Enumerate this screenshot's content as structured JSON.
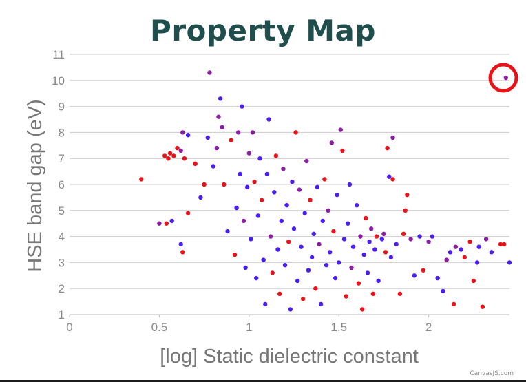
{
  "chart_data": {
    "type": "scatter",
    "title": "Property Map",
    "xlabel": "[log] Static dielectric constant",
    "ylabel": "HSE band gap (eV)",
    "xlim": [
      0,
      2.45
    ],
    "ylim": [
      1,
      11
    ],
    "x_ticks": [
      "0",
      "0.5",
      "1",
      "1.5",
      "2"
    ],
    "y_ticks": [
      "1",
      "2",
      "3",
      "4",
      "5",
      "6",
      "7",
      "8",
      "9",
      "10",
      "11"
    ],
    "grid": "horizontal",
    "legend": "none",
    "colors": {
      "low": "#4b1ef0",
      "mid": "#8a1fa0",
      "high": "#e8141a",
      "highlight_ring": "#e8141a"
    },
    "highlighted_point": {
      "x": 2.43,
      "y": 10.1
    },
    "points": [
      [
        0.4,
        6.2,
        "r"
      ],
      [
        0.5,
        4.5,
        "m"
      ],
      [
        0.54,
        4.5,
        "r"
      ],
      [
        0.57,
        4.6,
        "b"
      ],
      [
        0.53,
        7.1,
        "r"
      ],
      [
        0.55,
        7.0,
        "r"
      ],
      [
        0.56,
        7.2,
        "r"
      ],
      [
        0.58,
        7.1,
        "r"
      ],
      [
        0.6,
        7.4,
        "r"
      ],
      [
        0.62,
        7.3,
        "m"
      ],
      [
        0.63,
        8.0,
        "m"
      ],
      [
        0.66,
        7.9,
        "b"
      ],
      [
        0.64,
        7.0,
        "r"
      ],
      [
        0.62,
        3.7,
        "b"
      ],
      [
        0.63,
        3.4,
        "r"
      ],
      [
        0.66,
        4.9,
        "r"
      ],
      [
        0.7,
        6.8,
        "r"
      ],
      [
        0.73,
        5.5,
        "b"
      ],
      [
        0.75,
        6.0,
        "r"
      ],
      [
        0.77,
        7.8,
        "b"
      ],
      [
        0.78,
        10.3,
        "m"
      ],
      [
        0.8,
        6.7,
        "b"
      ],
      [
        0.82,
        7.4,
        "m"
      ],
      [
        0.83,
        8.6,
        "m"
      ],
      [
        0.84,
        9.3,
        "b"
      ],
      [
        0.85,
        8.2,
        "m"
      ],
      [
        0.86,
        6.0,
        "r"
      ],
      [
        0.88,
        4.2,
        "b"
      ],
      [
        0.9,
        7.7,
        "r"
      ],
      [
        0.92,
        3.3,
        "r"
      ],
      [
        0.93,
        5.1,
        "b"
      ],
      [
        0.94,
        8.0,
        "m"
      ],
      [
        0.95,
        6.4,
        "b"
      ],
      [
        0.96,
        9.0,
        "b"
      ],
      [
        0.97,
        4.6,
        "m"
      ],
      [
        0.98,
        2.8,
        "b"
      ],
      [
        0.99,
        5.9,
        "b"
      ],
      [
        1.0,
        7.2,
        "m"
      ],
      [
        1.01,
        3.9,
        "b"
      ],
      [
        1.02,
        8.0,
        "m"
      ],
      [
        1.03,
        6.1,
        "r"
      ],
      [
        1.04,
        2.4,
        "b"
      ],
      [
        1.05,
        4.8,
        "b"
      ],
      [
        1.06,
        7.0,
        "b"
      ],
      [
        1.07,
        5.4,
        "r"
      ],
      [
        1.08,
        3.1,
        "b"
      ],
      [
        1.09,
        1.4,
        "b"
      ],
      [
        1.1,
        6.4,
        "b"
      ],
      [
        1.11,
        8.5,
        "b"
      ],
      [
        1.12,
        4.0,
        "m"
      ],
      [
        1.13,
        2.6,
        "r"
      ],
      [
        1.14,
        5.7,
        "b"
      ],
      [
        1.15,
        7.1,
        "r"
      ],
      [
        1.16,
        3.5,
        "b"
      ],
      [
        1.17,
        1.8,
        "r"
      ],
      [
        1.18,
        4.6,
        "b"
      ],
      [
        1.19,
        6.6,
        "m"
      ],
      [
        1.2,
        2.9,
        "b"
      ],
      [
        1.21,
        5.2,
        "b"
      ],
      [
        1.22,
        3.8,
        "r"
      ],
      [
        1.23,
        1.2,
        "b"
      ],
      [
        1.24,
        6.1,
        "b"
      ],
      [
        1.25,
        4.3,
        "b"
      ],
      [
        1.26,
        8.0,
        "r"
      ],
      [
        1.27,
        2.3,
        "b"
      ],
      [
        1.28,
        5.8,
        "m"
      ],
      [
        1.29,
        3.6,
        "b"
      ],
      [
        1.3,
        1.6,
        "r"
      ],
      [
        1.31,
        4.9,
        "b"
      ],
      [
        1.32,
        6.9,
        "m"
      ],
      [
        1.33,
        2.7,
        "b"
      ],
      [
        1.34,
        5.4,
        "r"
      ],
      [
        1.35,
        3.2,
        "b"
      ],
      [
        1.36,
        4.1,
        "b"
      ],
      [
        1.37,
        2.0,
        "r"
      ],
      [
        1.38,
        5.9,
        "b"
      ],
      [
        1.39,
        3.7,
        "m"
      ],
      [
        1.4,
        1.4,
        "b"
      ],
      [
        1.41,
        4.6,
        "b"
      ],
      [
        1.42,
        6.2,
        "r"
      ],
      [
        1.43,
        2.9,
        "b"
      ],
      [
        1.44,
        5.0,
        "m"
      ],
      [
        1.45,
        3.4,
        "b"
      ],
      [
        1.46,
        7.6,
        "m"
      ],
      [
        1.47,
        4.2,
        "r"
      ],
      [
        1.48,
        2.4,
        "b"
      ],
      [
        1.49,
        5.6,
        "b"
      ],
      [
        1.5,
        3.0,
        "b"
      ],
      [
        1.51,
        8.1,
        "m"
      ],
      [
        1.52,
        7.3,
        "r"
      ],
      [
        1.53,
        3.9,
        "b"
      ],
      [
        1.54,
        1.7,
        "r"
      ],
      [
        1.55,
        4.5,
        "b"
      ],
      [
        1.56,
        6.0,
        "b"
      ],
      [
        1.57,
        2.8,
        "m"
      ],
      [
        1.58,
        3.6,
        "b"
      ],
      [
        1.6,
        5.2,
        "b"
      ],
      [
        1.61,
        2.2,
        "r"
      ],
      [
        1.62,
        4.0,
        "m"
      ],
      [
        1.63,
        1.2,
        "r"
      ],
      [
        1.64,
        3.3,
        "b"
      ],
      [
        1.65,
        4.7,
        "r"
      ],
      [
        1.66,
        2.6,
        "b"
      ],
      [
        1.67,
        3.8,
        "b"
      ],
      [
        1.68,
        4.3,
        "m"
      ],
      [
        1.69,
        1.8,
        "r"
      ],
      [
        1.7,
        3.5,
        "b"
      ],
      [
        1.71,
        4.0,
        "r"
      ],
      [
        1.72,
        2.3,
        "b"
      ],
      [
        1.74,
        3.9,
        "b"
      ],
      [
        1.75,
        4.1,
        "m"
      ],
      [
        1.76,
        3.4,
        "r"
      ],
      [
        1.77,
        7.4,
        "r"
      ],
      [
        1.78,
        6.3,
        "b"
      ],
      [
        1.79,
        3.2,
        "b"
      ],
      [
        1.8,
        6.2,
        "r"
      ],
      [
        1.8,
        7.8,
        "m"
      ],
      [
        1.82,
        3.7,
        "b"
      ],
      [
        1.84,
        1.8,
        "r"
      ],
      [
        1.86,
        4.1,
        "r"
      ],
      [
        1.87,
        5.0,
        "r"
      ],
      [
        1.88,
        5.6,
        "r"
      ],
      [
        1.9,
        3.9,
        "m"
      ],
      [
        1.92,
        2.5,
        "b"
      ],
      [
        1.95,
        4.0,
        "b"
      ],
      [
        1.97,
        2.7,
        "r"
      ],
      [
        2.0,
        3.8,
        "m"
      ],
      [
        2.02,
        4.0,
        "b"
      ],
      [
        2.05,
        2.4,
        "b"
      ],
      [
        2.08,
        1.9,
        "b"
      ],
      [
        2.1,
        3.1,
        "m"
      ],
      [
        2.12,
        3.4,
        "b"
      ],
      [
        2.14,
        1.4,
        "r"
      ],
      [
        2.15,
        3.6,
        "m"
      ],
      [
        2.18,
        3.5,
        "b"
      ],
      [
        2.2,
        3.2,
        "r"
      ],
      [
        2.23,
        3.8,
        "r"
      ],
      [
        2.25,
        2.3,
        "r"
      ],
      [
        2.27,
        3.0,
        "b"
      ],
      [
        2.28,
        3.6,
        "b"
      ],
      [
        2.3,
        1.3,
        "r"
      ],
      [
        2.32,
        3.9,
        "m"
      ],
      [
        2.35,
        3.4,
        "b"
      ],
      [
        2.4,
        3.7,
        "r"
      ],
      [
        2.42,
        3.7,
        "r"
      ],
      [
        2.43,
        10.1,
        "m"
      ],
      [
        2.45,
        3.0,
        "b"
      ]
    ]
  },
  "credit": "CanvasJS.com"
}
